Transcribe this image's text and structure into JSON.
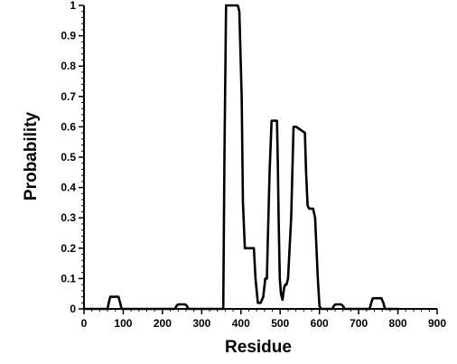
{
  "chart_data": {
    "type": "line",
    "title": "",
    "xlabel": "Residue",
    "ylabel": "Probability",
    "xlim": [
      0,
      900
    ],
    "ylim": [
      0,
      1
    ],
    "x_ticks": [
      0,
      100,
      200,
      300,
      400,
      500,
      600,
      700,
      800,
      900
    ],
    "y_ticks": [
      0,
      0.1,
      0.2,
      0.3,
      0.4,
      0.5,
      0.6,
      0.7,
      0.8,
      0.9,
      1
    ],
    "x_tick_labels": [
      "0",
      "100",
      "200",
      "300",
      "400",
      "500",
      "600",
      "700",
      "800",
      "900"
    ],
    "y_tick_labels": [
      "0",
      "0.1",
      "0.2",
      "0.3",
      "0.4",
      "0.5",
      "0.6",
      "0.7",
      "0.8",
      "0.9",
      "1"
    ],
    "grid": false,
    "legend": "none",
    "line_color": "#000000",
    "series": [
      {
        "x": [
          0,
          60,
          63,
          67,
          88,
          92,
          96,
          232,
          236,
          240,
          258,
          262,
          266,
          355,
          358,
          362,
          392,
          396,
          402,
          405,
          410,
          433,
          437,
          443,
          450,
          457,
          462,
          466,
          468,
          473,
          478,
          485,
          492,
          494,
          496,
          499,
          502,
          506,
          510,
          513,
          516,
          520,
          528,
          534,
          538,
          541,
          563,
          566,
          570,
          574,
          584,
          589,
          596,
          600,
          604,
          633,
          637,
          641,
          655,
          660,
          664,
          728,
          732,
          736,
          758,
          763,
          767,
          800
        ],
        "y": [
          0,
          0,
          0.02,
          0.04,
          0.04,
          0.02,
          0,
          0,
          0.01,
          0.015,
          0.015,
          0.01,
          0,
          0,
          0.5,
          1.0,
          1.0,
          0.98,
          0.7,
          0.35,
          0.2,
          0.2,
          0.1,
          0.02,
          0.02,
          0.04,
          0.1,
          0.1,
          0.2,
          0.45,
          0.62,
          0.62,
          0.62,
          0.48,
          0.3,
          0.1,
          0.05,
          0.03,
          0.07,
          0.08,
          0.08,
          0.1,
          0.3,
          0.6,
          0.6,
          0.6,
          0.58,
          0.45,
          0.34,
          0.33,
          0.33,
          0.3,
          0.1,
          0.01,
          0,
          0,
          0.01,
          0.015,
          0.015,
          0.01,
          0,
          0,
          0.02,
          0.035,
          0.035,
          0.02,
          0,
          0
        ]
      }
    ]
  }
}
